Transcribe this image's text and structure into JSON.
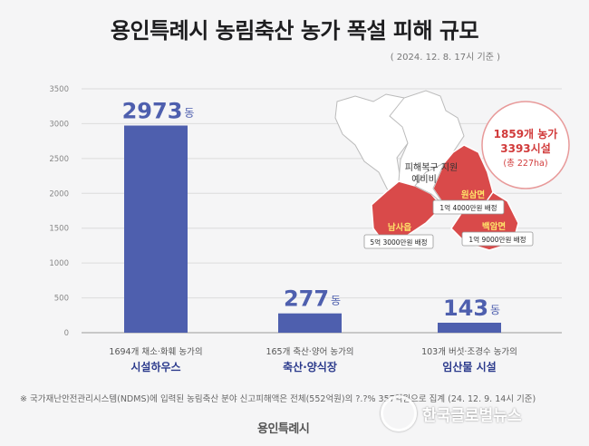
{
  "title": "용인특례시 농림축산 농가 폭설 피해 규모",
  "date_note": "( 2024. 12. 8. 17시 기준 )",
  "chart_data": {
    "type": "bar",
    "categories": [
      "시설하우스",
      "축산·양식장",
      "임산물 시설"
    ],
    "category_sublabels": [
      "1694개 채소·화훼 농가의",
      "165개 축산·양어 농가의",
      "103개 버섯·조경수 농가의"
    ],
    "values": [
      2973,
      277,
      143
    ],
    "value_unit": "동",
    "ylim": [
      0,
      3500
    ],
    "yticks": [
      0,
      500,
      1000,
      1500,
      2000,
      2500,
      3000,
      3500
    ],
    "grid": true,
    "bar_color": "#4e5fae"
  },
  "map": {
    "total_line1": "1859개 농가",
    "total_line2": "3393시설",
    "total_line3": "(총 227ha)",
    "support_center_line1": "피해복구 지원",
    "support_center_line2": "예비비",
    "regions": [
      {
        "name": "원삼면",
        "budget": "1억 4000만원 배정"
      },
      {
        "name": "백암면",
        "budget": "1억 9000만원 배정"
      },
      {
        "name": "남사읍",
        "budget": "5억 3000만원 배정"
      }
    ],
    "highlight_color": "#d94a4a"
  },
  "footnote": "※ 국가재난안전관리시스템(NDMS)에 입력된 농림축산 분야 신고피해액은 전체(552억원)의 ?.?% 357억원으로 집계 (24. 12. 9. 14시 기준)",
  "logo": "용인특례시",
  "watermark": "한국글로벌뉴스"
}
